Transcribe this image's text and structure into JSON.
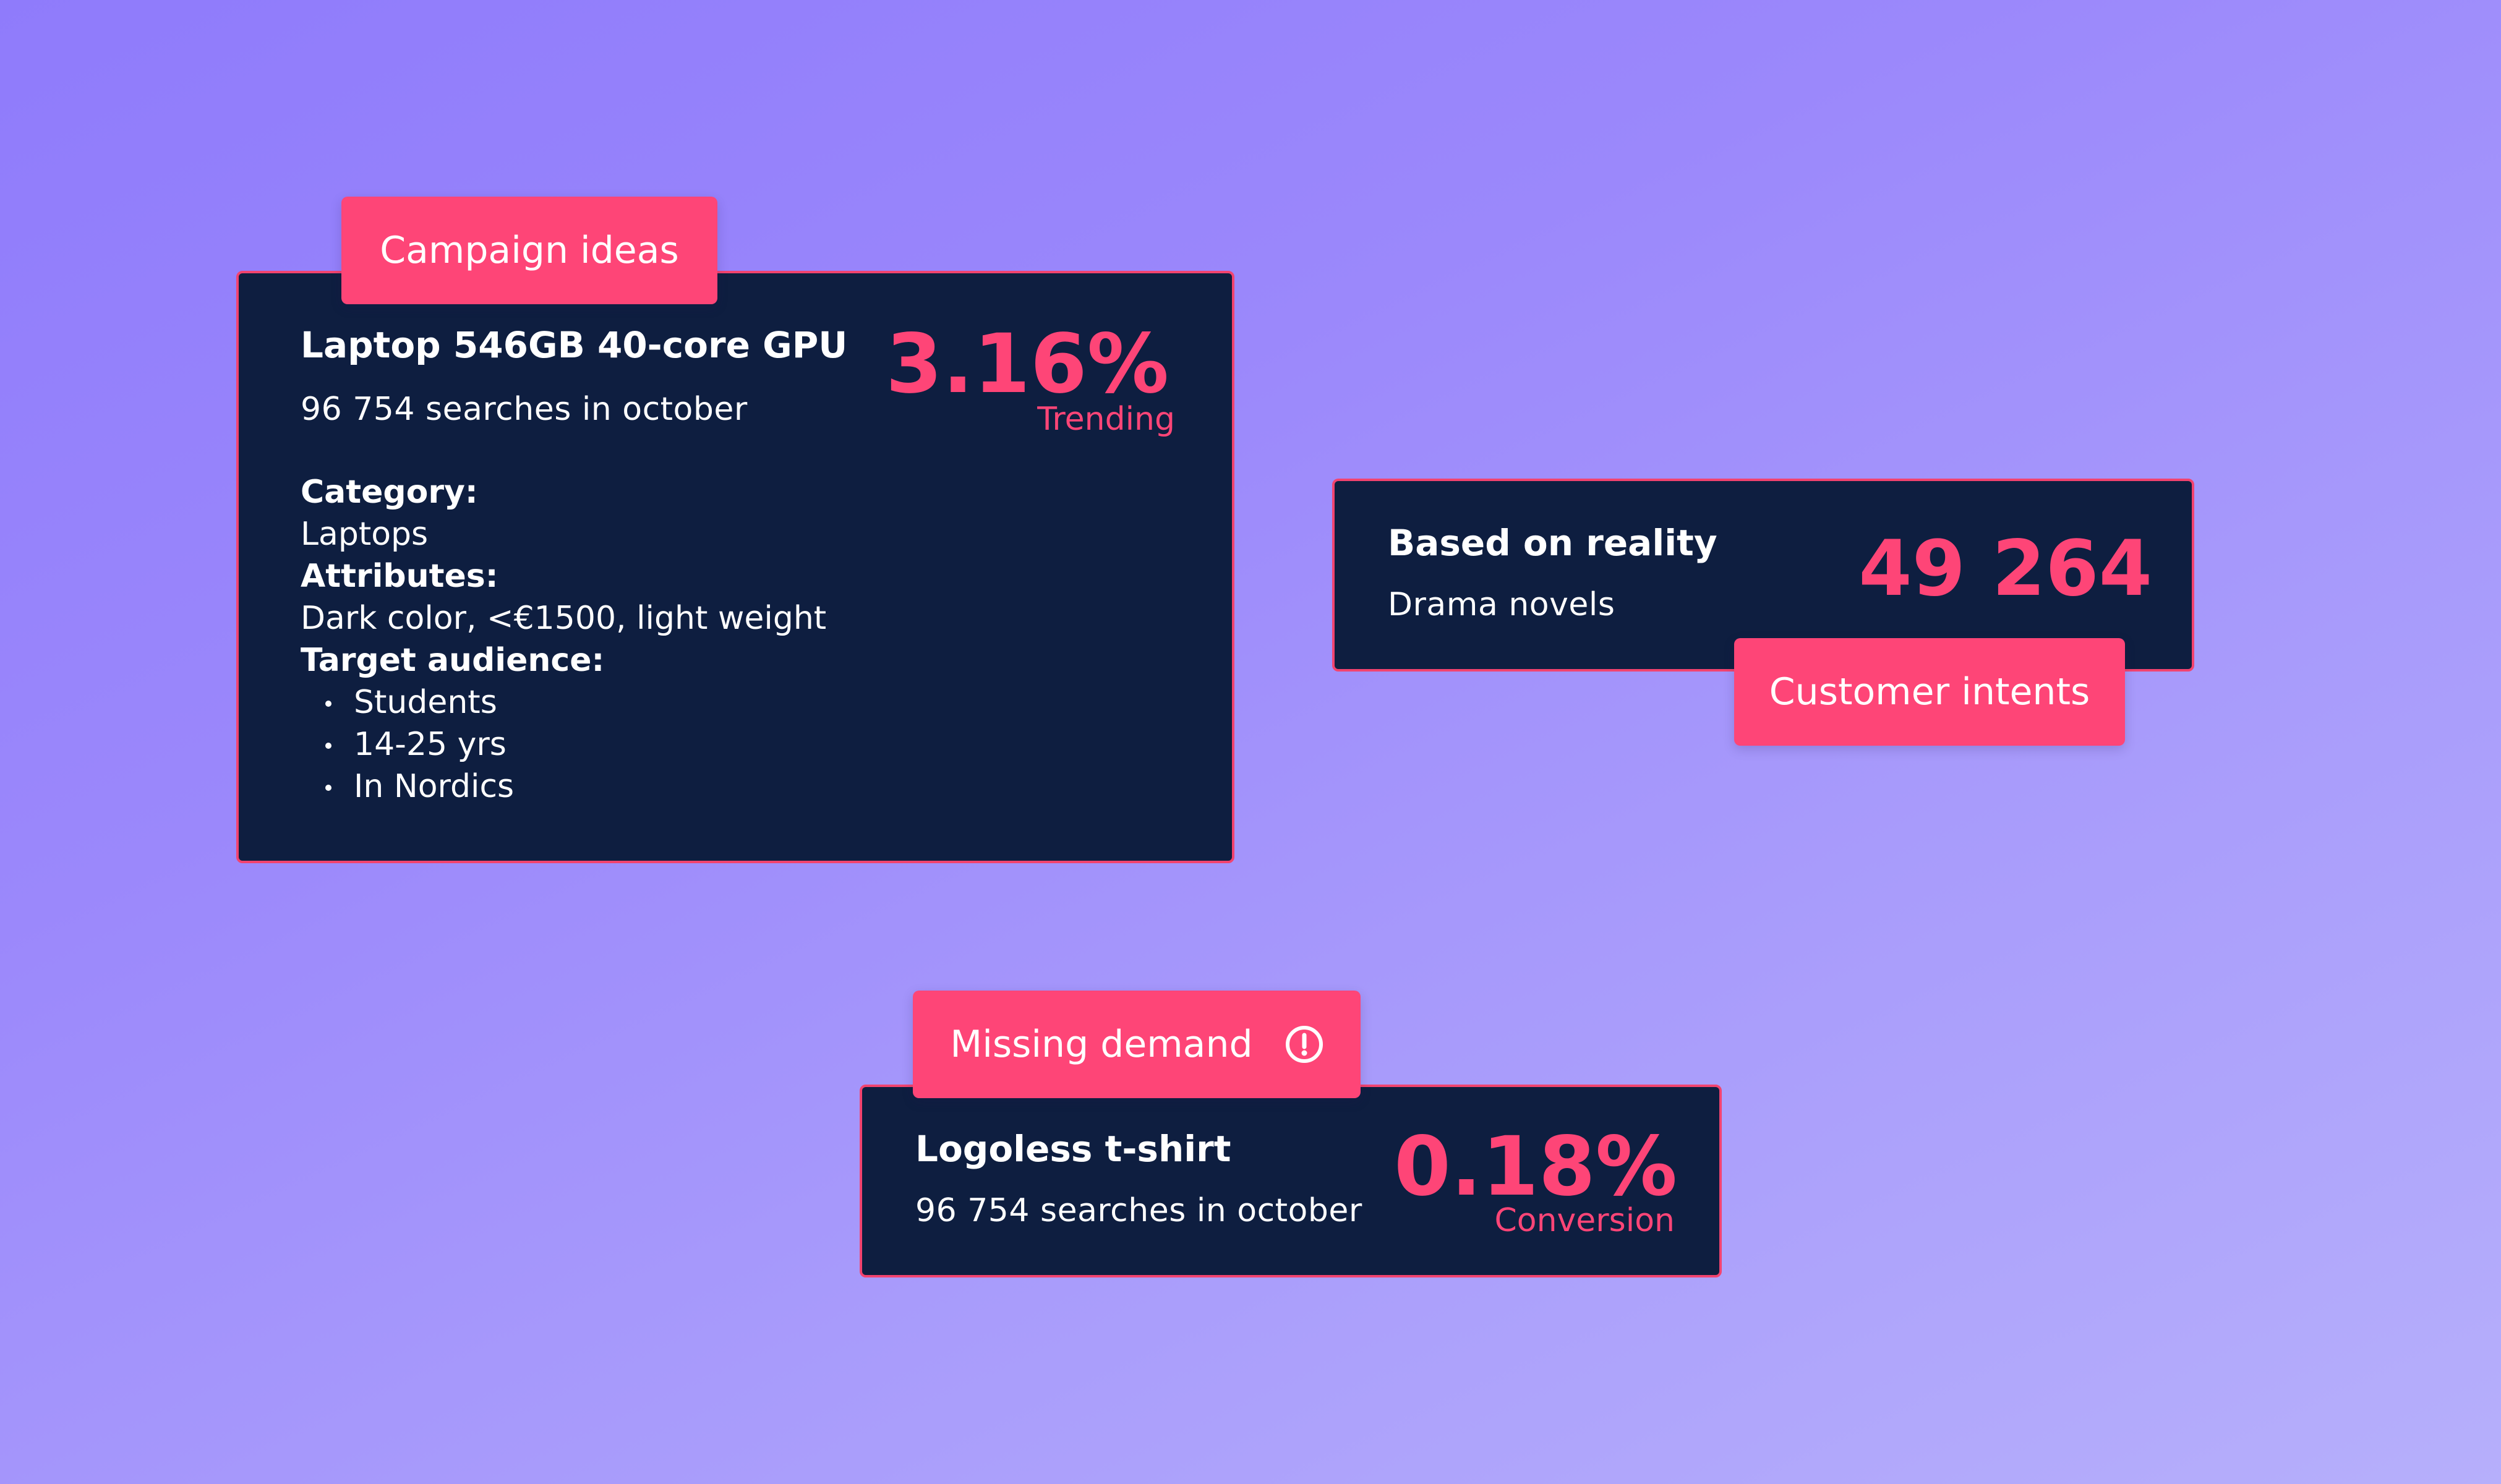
{
  "campaign_card": {
    "tag": "Campaign ideas",
    "title": "Laptop 546GB 40-core GPU",
    "subtitle": "96 754 searches in october",
    "metric_value": "3.16%",
    "metric_label": "Trending",
    "category_label": "Category:",
    "category_value": "Laptops",
    "attributes_label": "Attributes:",
    "attributes_value": "Dark color, <€1500, light weight",
    "audience_label": "Target audience:",
    "audience_items": [
      "Students",
      "14-25 yrs",
      "In Nordics"
    ]
  },
  "reality_card": {
    "title": "Based on reality",
    "subtitle": "Drama novels",
    "metric_value": "49 264",
    "tag": "Customer intents"
  },
  "demand_card": {
    "tag": "Missing demand",
    "tag_icon": "alert-circle-icon",
    "title": "Logoless t-shirt",
    "subtitle": "96 754 searches in october",
    "metric_value": "0.18%",
    "metric_label": "Conversion"
  },
  "colors": {
    "card_bg": "#0e1e40",
    "accent": "#fe4577",
    "background_start": "#8f7bfb",
    "background_end": "#b6affb"
  }
}
